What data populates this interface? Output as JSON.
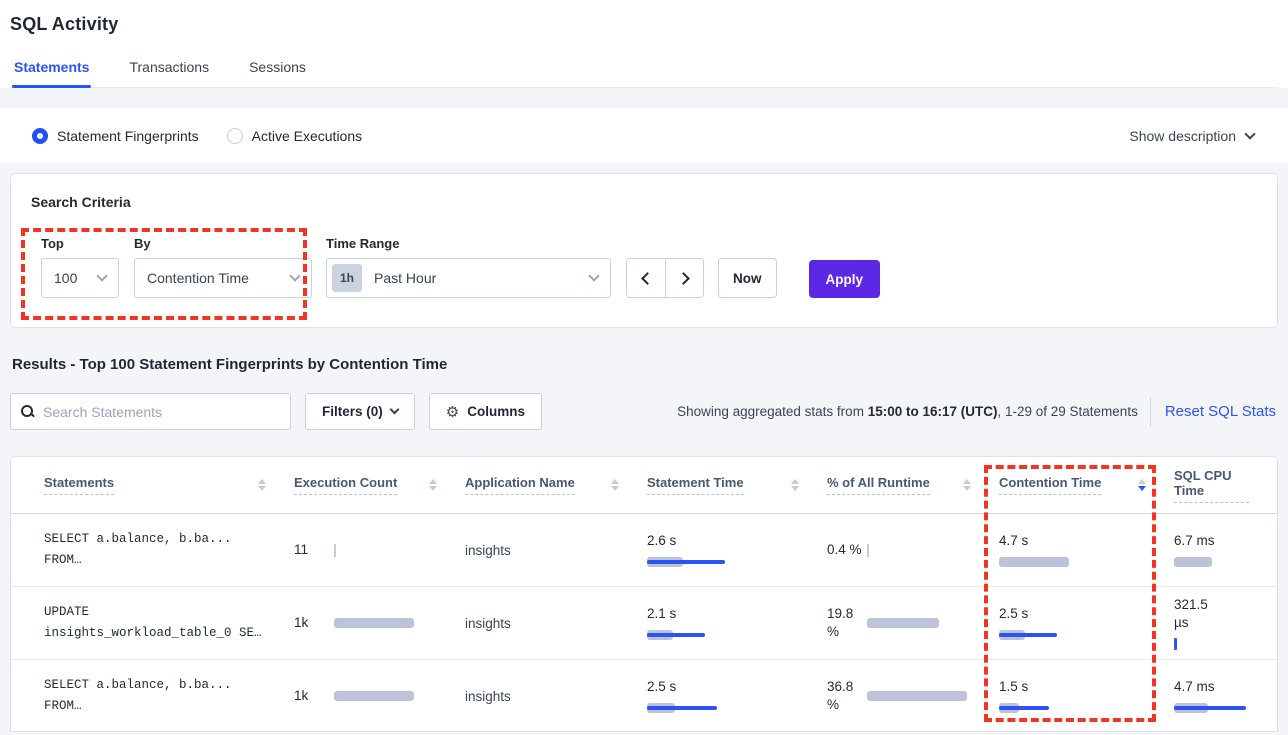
{
  "page_title": "SQL Activity",
  "tabs": [
    {
      "label": "Statements",
      "active": true
    },
    {
      "label": "Transactions",
      "active": false
    },
    {
      "label": "Sessions",
      "active": false
    }
  ],
  "view_toggle": {
    "options": [
      {
        "label": "Statement Fingerprints",
        "selected": true
      },
      {
        "label": "Active Executions",
        "selected": false
      }
    ],
    "show_description_label": "Show description"
  },
  "search_criteria": {
    "title": "Search Criteria",
    "top": {
      "label": "Top",
      "value": "100"
    },
    "by": {
      "label": "By",
      "value": "Contention Time"
    },
    "time_range": {
      "label": "Time Range",
      "badge": "1h",
      "value": "Past Hour"
    },
    "now_label": "Now",
    "apply_label": "Apply"
  },
  "results": {
    "heading": "Results - Top 100 Statement Fingerprints by Contention Time",
    "search_placeholder": "Search Statements",
    "filters_label": "Filters (0)",
    "columns_label": "Columns",
    "stats_prefix": "Showing aggregated stats from ",
    "stats_bold": "15:00 to 16:17 (UTC)",
    "stats_suffix": ", 1-29 of 29 Statements",
    "reset_label": "Reset SQL Stats"
  },
  "table": {
    "columns": [
      {
        "key": "statements",
        "label": "Statements",
        "sort": "none"
      },
      {
        "key": "execution_count",
        "label": "Execution Count",
        "sort": "none"
      },
      {
        "key": "application_name",
        "label": "Application Name",
        "sort": "none"
      },
      {
        "key": "statement_time",
        "label": "Statement Time",
        "sort": "none"
      },
      {
        "key": "pct_runtime",
        "label": "% of All Runtime",
        "sort": "none"
      },
      {
        "key": "contention_time",
        "label": "Contention Time",
        "sort": "desc"
      },
      {
        "key": "sql_cpu_time",
        "label": "SQL CPU Time",
        "sort": "hidden"
      }
    ],
    "rows": [
      {
        "statement_lines": [
          "SELECT a.balance, b.ba...",
          "FROM…"
        ],
        "execution_count": {
          "lines": [
            "11"
          ],
          "bar": {
            "tick": "gray"
          }
        },
        "application_name": "insights",
        "statement_time": {
          "lines": [
            "2.6 s"
          ],
          "bar": {
            "gray": 36,
            "blue": 78
          }
        },
        "pct_runtime": {
          "lines": [
            "0.4 %"
          ],
          "bar": {
            "tick": "gray"
          }
        },
        "contention_time": {
          "lines": [
            "4.7 s"
          ],
          "bar": {
            "gray": 70
          }
        },
        "sql_cpu_time": {
          "lines": [
            "6.7 ms"
          ],
          "bar": {
            "gray": 38
          }
        }
      },
      {
        "statement_lines": [
          "UPDATE",
          "insights_workload_table_0 SE…"
        ],
        "execution_count": {
          "lines": [
            "1k"
          ],
          "bar": {
            "gray": 80
          }
        },
        "application_name": "insights",
        "statement_time": {
          "lines": [
            "2.1 s"
          ],
          "bar": {
            "gray": 26,
            "blue": 58
          }
        },
        "pct_runtime": {
          "lines": [
            "19.8",
            "%"
          ],
          "bar": {
            "gray": 72
          }
        },
        "contention_time": {
          "lines": [
            "2.5 s"
          ],
          "bar": {
            "gray": 26,
            "blue": 58
          }
        },
        "sql_cpu_time": {
          "lines": [
            "321.5",
            "µs"
          ],
          "bar": {
            "tick": "blue"
          }
        }
      },
      {
        "statement_lines": [
          "SELECT a.balance, b.ba...",
          "FROM…"
        ],
        "execution_count": {
          "lines": [
            "1k"
          ],
          "bar": {
            "gray": 80
          }
        },
        "application_name": "insights",
        "statement_time": {
          "lines": [
            "2.5 s"
          ],
          "bar": {
            "gray": 28,
            "blue": 70
          }
        },
        "pct_runtime": {
          "lines": [
            "36.8",
            "%"
          ],
          "bar": {
            "gray": 100
          }
        },
        "contention_time": {
          "lines": [
            "1.5 s"
          ],
          "bar": {
            "gray": 20,
            "blue": 50
          }
        },
        "sql_cpu_time": {
          "lines": [
            "4.7 ms"
          ],
          "bar": {
            "gray": 34,
            "blue": 72
          }
        }
      }
    ]
  },
  "colors": {
    "accent_blue": "#2a53f5",
    "apply_purple": "#5c28e6",
    "bar_gray": "#bcc3d9",
    "annotation_red": "#f43420",
    "page_background": "#f4f5f9"
  }
}
